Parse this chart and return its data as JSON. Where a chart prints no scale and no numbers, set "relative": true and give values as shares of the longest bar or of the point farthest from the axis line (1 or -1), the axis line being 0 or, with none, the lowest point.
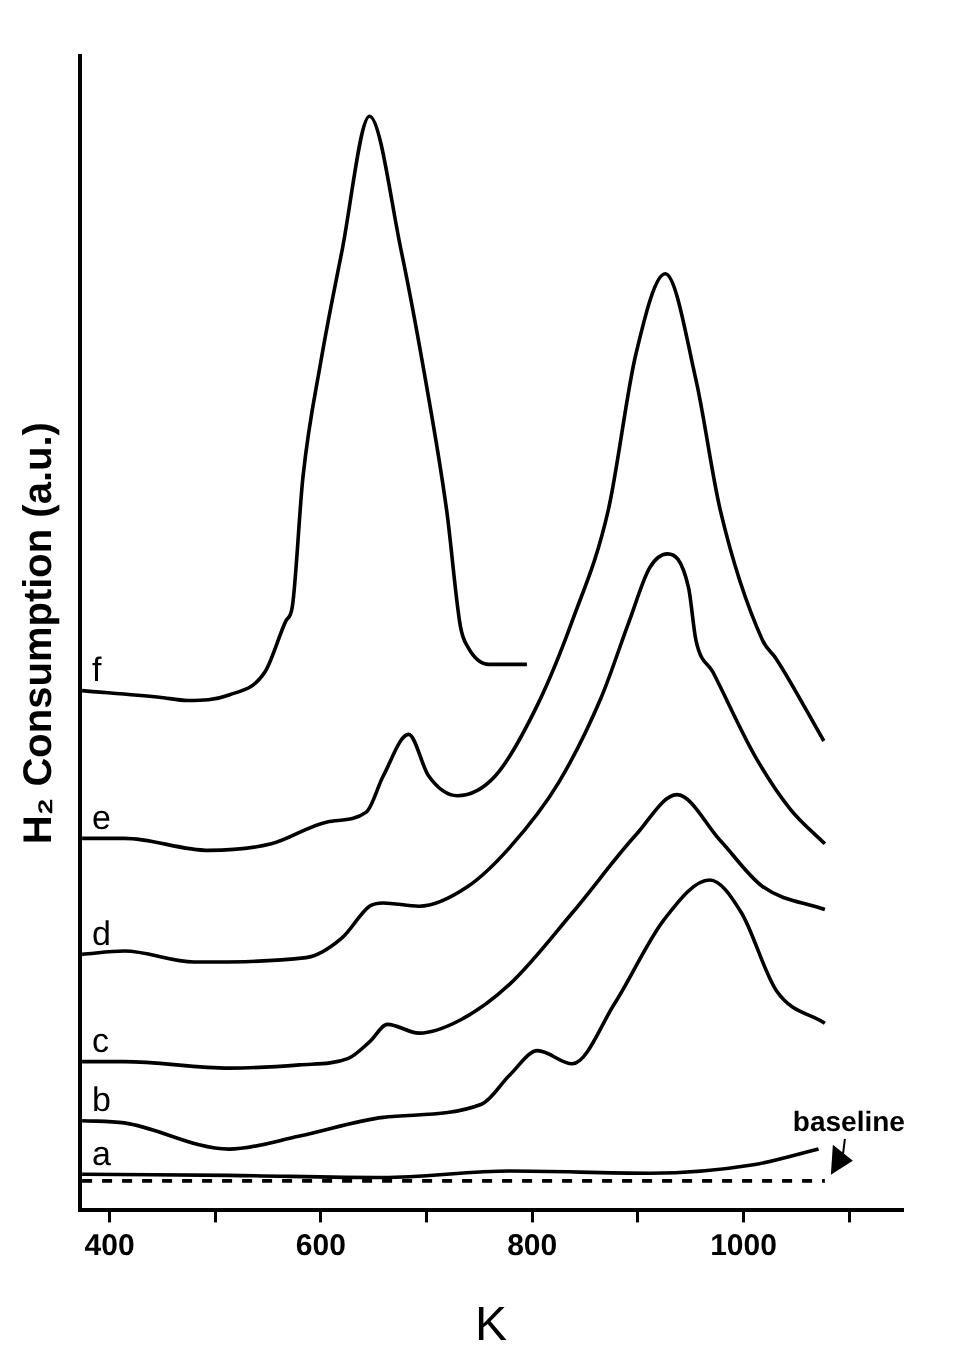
{
  "chart_data": {
    "type": "line",
    "relative": true,
    "xlabel": "K",
    "ylabel": "H₂ Consumption (a.u.)",
    "xlim": [
      372,
      1150
    ],
    "xticks": [
      400,
      {
        "value": 500,
        "label": null
      },
      600,
      {
        "value": 700,
        "label": null
      },
      800,
      {
        "value": 900,
        "label": null
      },
      1000,
      {
        "value": 1100,
        "label": null
      }
    ],
    "grid": false,
    "legend": false,
    "marker": "none",
    "line_style": "solid",
    "series": [
      {
        "name": "f",
        "color": "#000000",
        "x": [
          374,
          447,
          474,
          513,
          547,
          567,
          573,
          583,
          600,
          620,
          646,
          676,
          699,
          719,
          732,
          739,
          759,
          795
        ],
        "values": [
          0.475,
          0.469,
          0.466,
          0.471,
          0.492,
          0.539,
          0.552,
          0.67,
          0.776,
          0.877,
          1,
          0.877,
          0.759,
          0.64,
          0.534,
          0.515,
          0.499,
          0.499
        ]
      },
      {
        "name": "e",
        "color": "#000000",
        "x": [
          374,
          414,
          494,
          553,
          606,
          643,
          659,
          683,
          702,
          729,
          765,
          805,
          838,
          872,
          898,
          926,
          955,
          978,
          1018,
          1031,
          1076
        ],
        "values": [
          0.34,
          0.34,
          0.329,
          0.335,
          0.355,
          0.364,
          0.397,
          0.435,
          0.397,
          0.379,
          0.397,
          0.462,
          0.539,
          0.64,
          0.782,
          0.856,
          0.759,
          0.64,
          0.521,
          0.504,
          0.429
        ]
      },
      {
        "name": "d",
        "color": "#000000",
        "x": [
          374,
          414,
          480,
          586,
          620,
          646,
          659,
          693,
          739,
          779,
          825,
          865,
          892,
          911,
          928,
          948,
          955,
          971,
          1011,
          1044,
          1077
        ],
        "values": [
          0.234,
          0.237,
          0.227,
          0.231,
          0.249,
          0.278,
          0.281,
          0.278,
          0.296,
          0.332,
          0.391,
          0.468,
          0.539,
          0.587,
          0.6,
          0.569,
          0.521,
          0.492,
          0.415,
          0.367,
          0.335
        ]
      },
      {
        "name": "c",
        "color": "#000000",
        "x": [
          374,
          414,
          513,
          580,
          626,
          646,
          663,
          693,
          732,
          779,
          838,
          898,
          937,
          978,
          1018,
          1077
        ],
        "values": [
          0.136,
          0.136,
          0.13,
          0.133,
          0.139,
          0.154,
          0.17,
          0.162,
          0.174,
          0.207,
          0.272,
          0.343,
          0.38,
          0.338,
          0.296,
          0.275
        ]
      },
      {
        "name": "b",
        "color": "#000000",
        "x": [
          374,
          414,
          513,
          580,
          659,
          752,
          779,
          805,
          838,
          878,
          925,
          968,
          998,
          1031,
          1077
        ],
        "values": [
          0.082,
          0.08,
          0.056,
          0.068,
          0.085,
          0.097,
          0.124,
          0.146,
          0.134,
          0.189,
          0.266,
          0.302,
          0.272,
          0.201,
          0.171
        ]
      },
      {
        "name": "a",
        "color": "#000000",
        "x": [
          374,
          513,
          659,
          779,
          911,
          1011,
          1071
        ],
        "values": [
          0.033,
          0.032,
          0.03,
          0.036,
          0.034,
          0.042,
          0.056
        ]
      },
      {
        "color": "#000000",
        "line_style": "dashed",
        "x": [
          374,
          1077
        ],
        "values": [
          0.027,
          0.027
        ]
      }
    ],
    "annotations": [
      {
        "text": "baseline",
        "x": 1077,
        "y": 0.027
      }
    ]
  }
}
